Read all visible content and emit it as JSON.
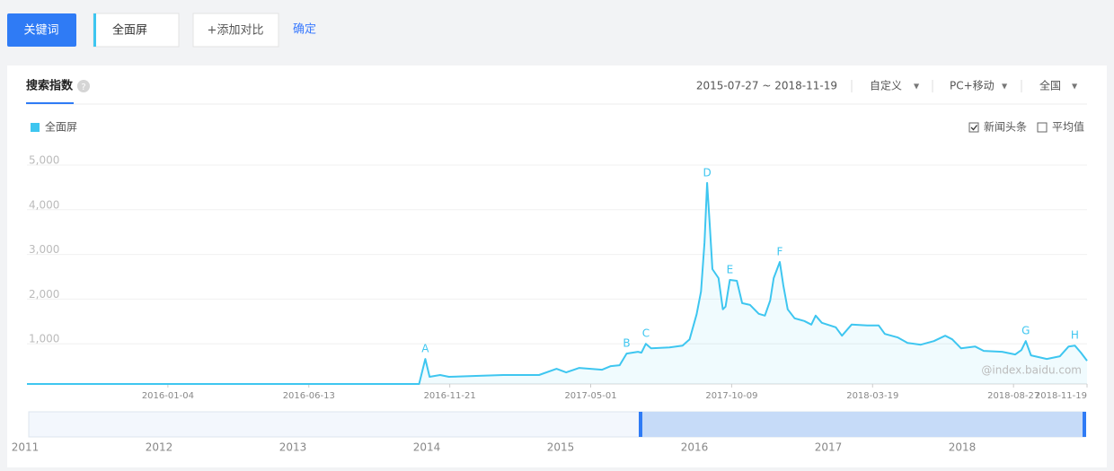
{
  "toolbar": {
    "keyword_button": "关键词",
    "keyword": "全面屏",
    "add_compare": "+添加对比",
    "confirm": "确定"
  },
  "panel": {
    "tab": "搜索指数",
    "date_range": "2015-07-27 ~ 2018-11-19",
    "custom": "自定义",
    "device": "PC+移动",
    "region": "全国",
    "options": [
      {
        "label": "新闻头条",
        "checked": true
      },
      {
        "label": "平均值",
        "checked": false
      }
    ],
    "watermark": "@index.baidu.com"
  },
  "navigator": {
    "years": [
      "2011",
      "2012",
      "2013",
      "2014",
      "2015",
      "2016",
      "2017",
      "2018"
    ]
  },
  "chart_data": {
    "type": "line",
    "area": true,
    "grid": true,
    "xlim": [
      "2015-07-27",
      "2018-11-19"
    ],
    "xticks": [
      "2016-01-04",
      "2016-06-13",
      "2016-11-21",
      "2017-05-01",
      "2017-10-09",
      "2018-03-19",
      "2018-08-27",
      "2018-11-19"
    ],
    "ylim": [
      0,
      5000
    ],
    "yticks": [
      {
        "value": 1000,
        "label": "1,000"
      },
      {
        "value": 2000,
        "label": "2,000"
      },
      {
        "value": 3000,
        "label": "3,000"
      },
      {
        "value": 4000,
        "label": "4,000"
      },
      {
        "value": 5000,
        "label": "5,000"
      }
    ],
    "x": [
      "2015-07-27",
      "2016-10-17",
      "2016-10-24",
      "2016-10-29",
      "2016-11-10",
      "2016-11-20",
      "2016-12-21",
      "2017-01-21",
      "2017-03-03",
      "2017-03-23",
      "2017-04-03",
      "2017-04-18",
      "2017-05-14",
      "2017-05-24",
      "2017-06-03",
      "2017-06-11",
      "2017-06-24",
      "2017-06-28",
      "2017-07-03",
      "2017-07-09",
      "2017-07-30",
      "2017-08-14",
      "2017-08-22",
      "2017-08-30",
      "2017-09-04",
      "2017-09-08",
      "2017-09-11",
      "2017-09-14",
      "2017-09-17",
      "2017-09-24",
      "2017-09-29",
      "2017-10-02",
      "2017-10-07",
      "2017-10-15",
      "2017-10-21",
      "2017-10-30",
      "2017-11-09",
      "2017-11-16",
      "2017-11-22",
      "2017-11-26",
      "2017-12-03",
      "2017-12-07",
      "2017-12-12",
      "2017-12-20",
      "2017-12-31",
      "2018-01-08",
      "2018-01-13",
      "2018-01-20",
      "2018-02-05",
      "2018-02-12",
      "2018-02-23",
      "2018-03-13",
      "2018-03-26",
      "2018-04-02",
      "2018-04-17",
      "2018-04-28",
      "2018-05-13",
      "2018-05-28",
      "2018-06-10",
      "2018-06-18",
      "2018-06-28",
      "2018-07-14",
      "2018-07-24",
      "2018-08-14",
      "2018-08-29",
      "2018-09-05",
      "2018-09-10",
      "2018-09-16",
      "2018-10-04",
      "2018-10-19",
      "2018-10-29",
      "2018-11-05",
      "2018-11-12",
      "2018-11-19"
    ],
    "series": [
      {
        "name": "全面屏",
        "color": "#3ec6f0",
        "values": [
          0,
          0,
          560,
          160,
          200,
          160,
          180,
          200,
          200,
          340,
          260,
          360,
          320,
          400,
          420,
          680,
          720,
          700,
          900,
          800,
          820,
          860,
          1000,
          1560,
          2070,
          3170,
          4500,
          3570,
          2570,
          2370,
          1670,
          1730,
          2330,
          2310,
          1810,
          1770,
          1570,
          1530,
          1870,
          2370,
          2730,
          2210,
          1670,
          1470,
          1410,
          1330,
          1530,
          1370,
          1270,
          1080,
          1330,
          1310,
          1310,
          1120,
          1040,
          920,
          880,
          960,
          1080,
          1000,
          800,
          840,
          740,
          720,
          660,
          760,
          960,
          640,
          560,
          620,
          840,
          860,
          700,
          520
        ]
      }
    ],
    "annotations": [
      {
        "text": "A",
        "x": "2016-10-24"
      },
      {
        "text": "B",
        "x": "2017-06-11"
      },
      {
        "text": "C",
        "x": "2017-07-03"
      },
      {
        "text": "D",
        "x": "2017-09-11"
      },
      {
        "text": "E",
        "x": "2017-10-07"
      },
      {
        "text": "F",
        "x": "2017-12-03"
      },
      {
        "text": "G",
        "x": "2018-09-10"
      },
      {
        "text": "H",
        "x": "2018-11-05"
      }
    ]
  }
}
